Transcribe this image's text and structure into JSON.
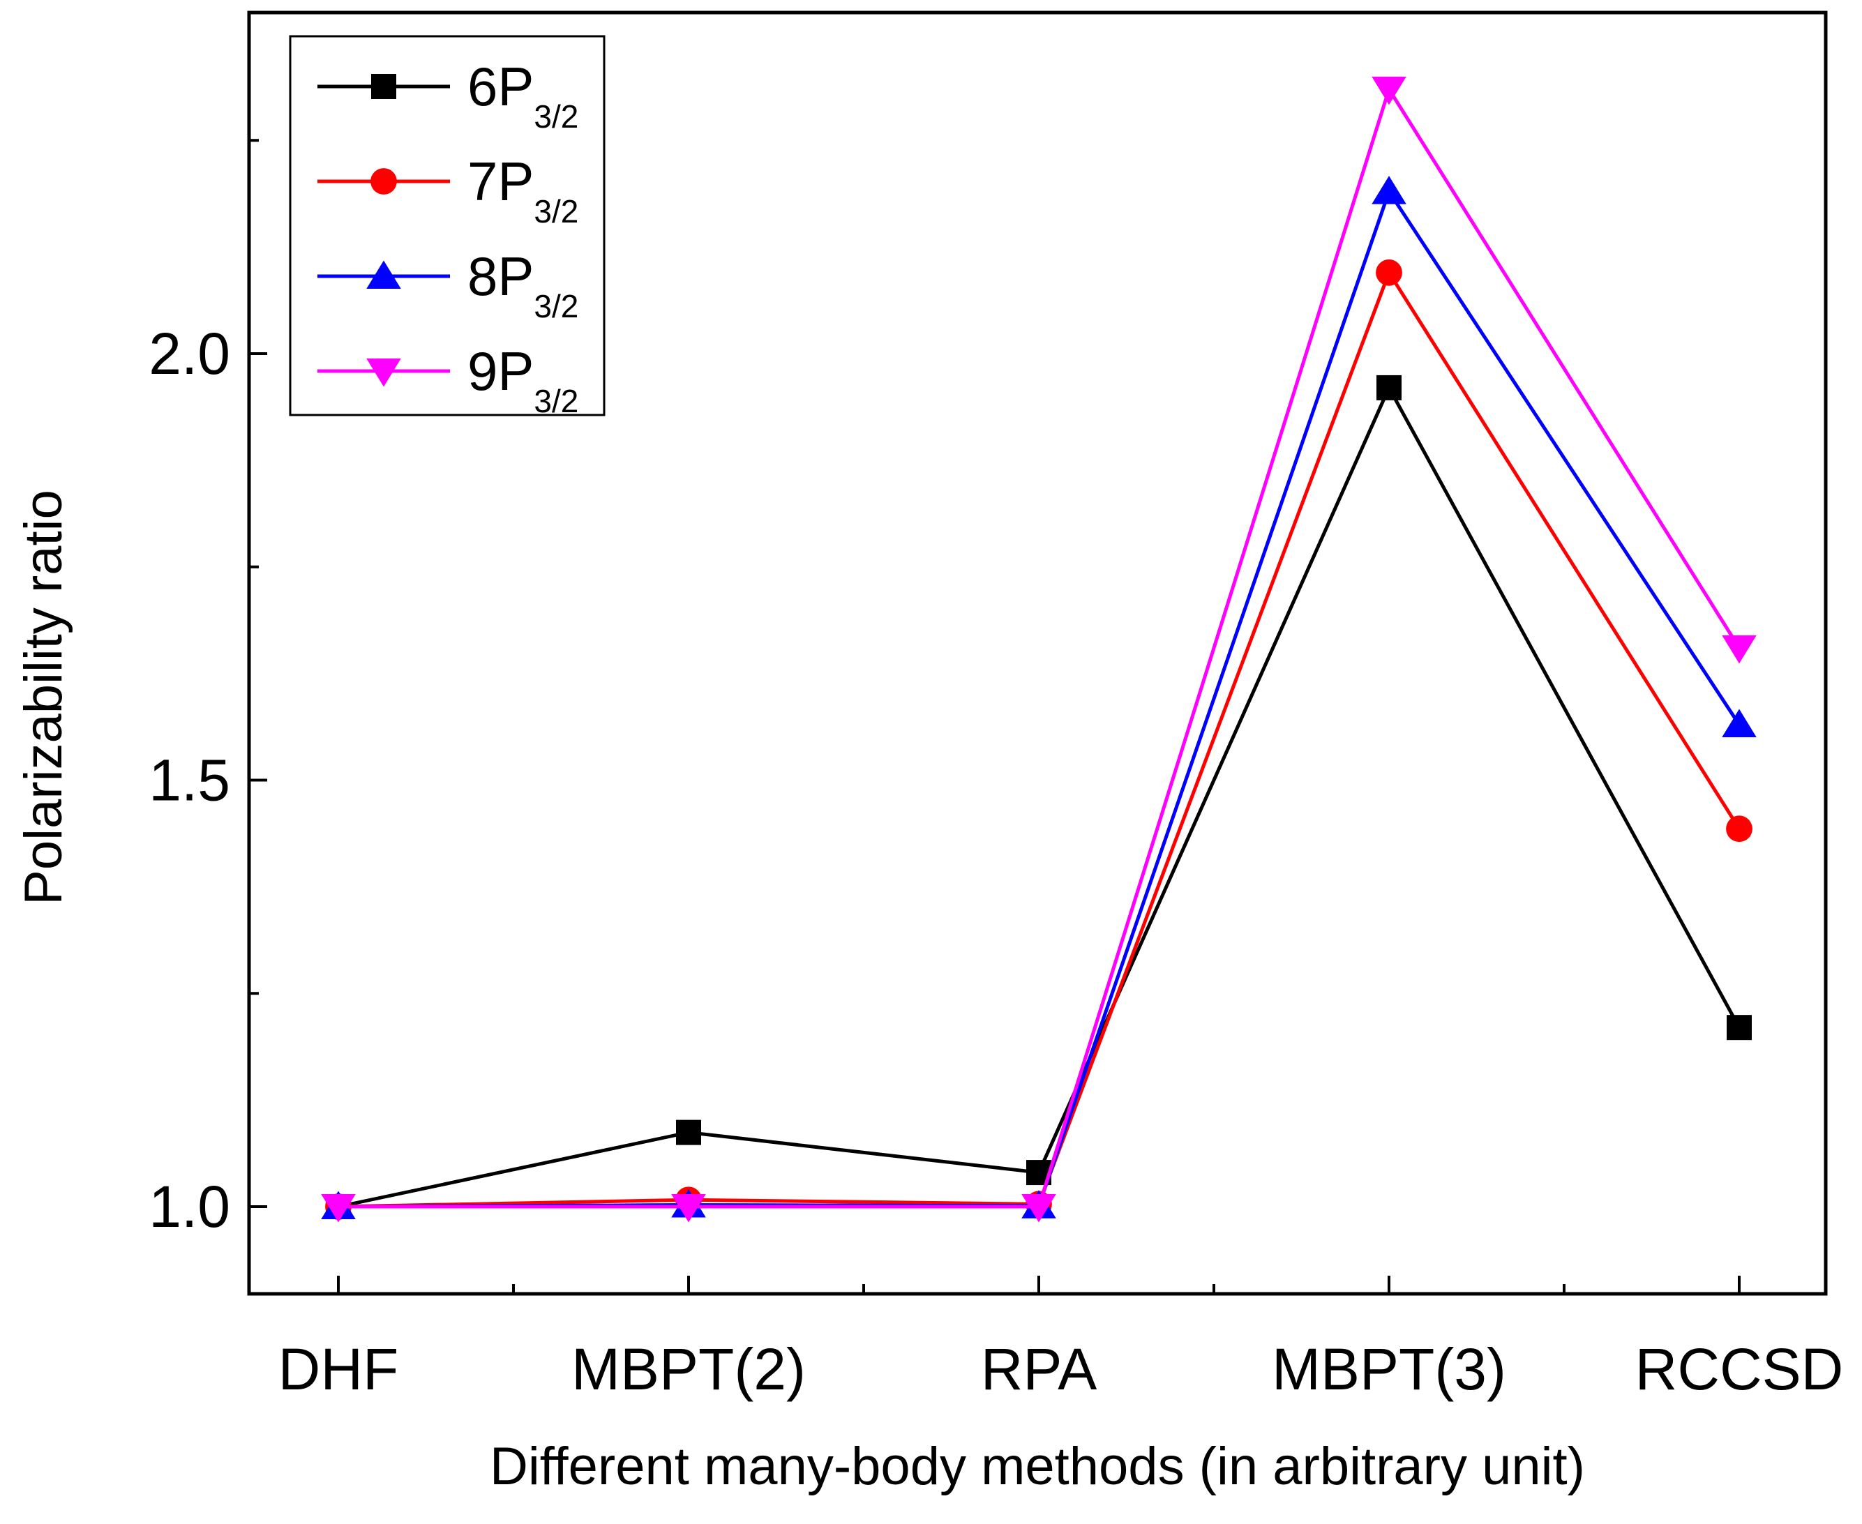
{
  "chart_data": {
    "type": "line",
    "title": "",
    "xlabel": "Different many-body methods (in arbitrary unit)",
    "ylabel": "Polarizability ratio",
    "categories": [
      "DHF",
      "MBPT(2)",
      "RPA",
      "MBPT(3)",
      "RCCSD"
    ],
    "ylim": [
      0.9,
      2.4
    ],
    "yticks_major": [
      1.0,
      1.5,
      2.0
    ],
    "ytick_labels": [
      "1.0",
      "1.5",
      "2.0"
    ],
    "yticks_minor": [
      1.25,
      1.75,
      2.25
    ],
    "grid": false,
    "legend_position": "top-left",
    "series": [
      {
        "name": "6P",
        "sub": "3/2",
        "color": "#000000",
        "marker": "square",
        "values": [
          1.0,
          1.087,
          1.04,
          1.96,
          1.21
        ]
      },
      {
        "name": "7P",
        "sub": "3/2",
        "color": "#ff0000",
        "marker": "circle",
        "values": [
          1.0,
          1.008,
          1.003,
          2.095,
          1.443
        ]
      },
      {
        "name": "8P",
        "sub": "3/2",
        "color": "#0000ff",
        "marker": "triangle-up",
        "values": [
          1.0,
          1.002,
          1.001,
          2.19,
          1.565
        ]
      },
      {
        "name": "9P",
        "sub": "3/2",
        "color": "#ff00ff",
        "marker": "triangle-down",
        "values": [
          1.0,
          1.0,
          1.0,
          2.31,
          1.655
        ]
      }
    ]
  }
}
